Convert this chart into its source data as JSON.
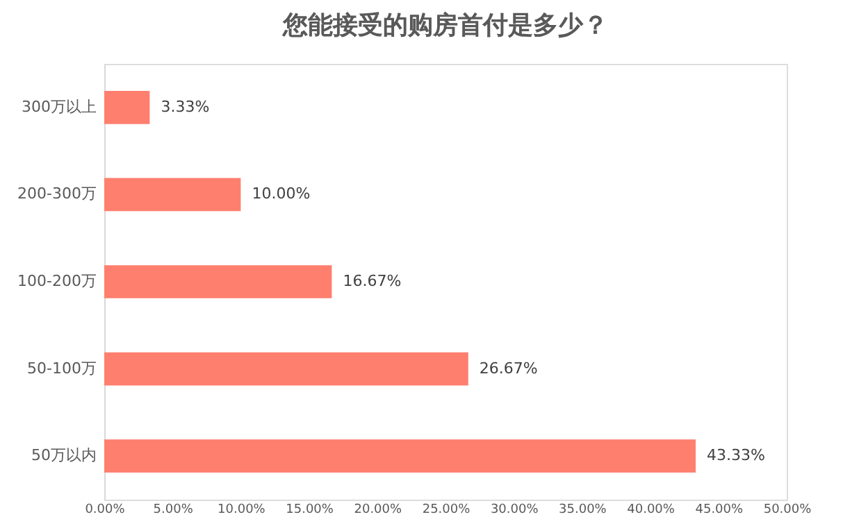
{
  "chart_data": {
    "type": "bar",
    "orientation": "horizontal",
    "title": "您能接受的购房首付是多少？",
    "categories": [
      "300万以上",
      "200-300万",
      "100-200万",
      "50-100万",
      "50万以内"
    ],
    "values": [
      3.33,
      10.0,
      16.67,
      26.67,
      43.33
    ],
    "value_labels": [
      "3.33%",
      "10.00%",
      "16.67%",
      "26.67%",
      "43.33%"
    ],
    "color": "#ff7f6e",
    "xlim": [
      0,
      50
    ],
    "xticks": [
      {
        "value": 0,
        "label": "0.00%"
      },
      {
        "value": 5,
        "label": "5.00%"
      },
      {
        "value": 10,
        "label": "10.00%"
      },
      {
        "value": 15,
        "label": "15.00%"
      },
      {
        "value": 20,
        "label": "20.00%"
      },
      {
        "value": 25,
        "label": "25.00%"
      },
      {
        "value": 30,
        "label": "30.00%"
      },
      {
        "value": 35,
        "label": "35.00%"
      },
      {
        "value": 40,
        "label": "40.00%"
      },
      {
        "value": 45,
        "label": "45.00%"
      },
      {
        "value": 50,
        "label": "50.00%"
      }
    ],
    "grid": false
  }
}
